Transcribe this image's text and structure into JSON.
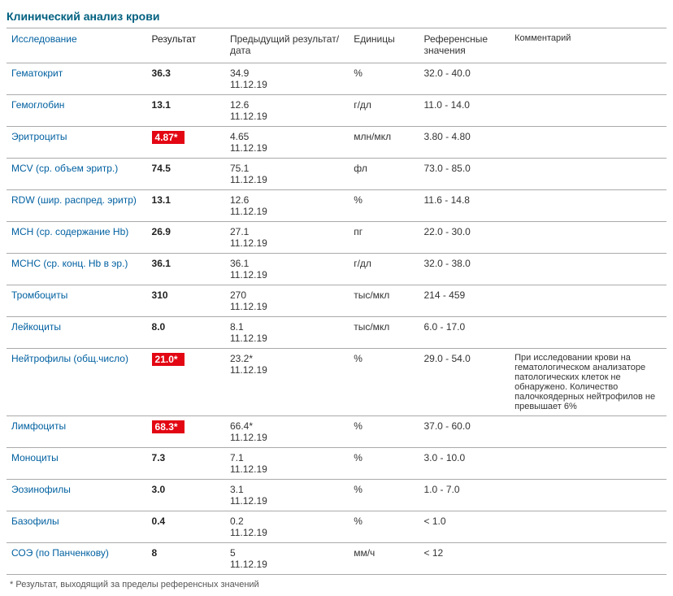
{
  "title": "Клинический анализ крови",
  "columns": {
    "name": "Исследование",
    "result": "Результат",
    "prev": "Предыдущий результат/дата",
    "unit": "Единицы",
    "ref": "Референсные значения",
    "comment": "Комментарий"
  },
  "rows": [
    {
      "name": "Гематокрит",
      "result": "36.3",
      "flag": false,
      "prev_val": "34.9",
      "prev_date": "11.12.19",
      "unit": "%",
      "ref": "32.0 - 40.0",
      "comment": ""
    },
    {
      "name": "Гемоглобин",
      "result": "13.1",
      "flag": false,
      "prev_val": "12.6",
      "prev_date": "11.12.19",
      "unit": "г/дл",
      "ref": "11.0 - 14.0",
      "comment": ""
    },
    {
      "name": "Эритроциты",
      "result": "4.87*",
      "flag": true,
      "prev_val": "4.65",
      "prev_date": "11.12.19",
      "unit": "млн/мкл",
      "ref": "3.80 - 4.80",
      "comment": ""
    },
    {
      "name": "MCV (ср. объем эритр.)",
      "result": "74.5",
      "flag": false,
      "prev_val": "75.1",
      "prev_date": "11.12.19",
      "unit": "фл",
      "ref": "73.0 - 85.0",
      "comment": ""
    },
    {
      "name": "RDW (шир. распред. эритр)",
      "result": "13.1",
      "flag": false,
      "prev_val": "12.6",
      "prev_date": "11.12.19",
      "unit": "%",
      "ref": "11.6 - 14.8",
      "comment": ""
    },
    {
      "name": "MCH (ср. содержание Hb)",
      "result": "26.9",
      "flag": false,
      "prev_val": "27.1",
      "prev_date": "11.12.19",
      "unit": "пг",
      "ref": "22.0 - 30.0",
      "comment": ""
    },
    {
      "name": "MCHC (ср. конц. Hb в эр.)",
      "result": "36.1",
      "flag": false,
      "prev_val": "36.1",
      "prev_date": "11.12.19",
      "unit": "г/дл",
      "ref": "32.0 - 38.0",
      "comment": ""
    },
    {
      "name": "Тромбоциты",
      "result": "310",
      "flag": false,
      "prev_val": "270",
      "prev_date": "11.12.19",
      "unit": "тыс/мкл",
      "ref": "214 - 459",
      "comment": ""
    },
    {
      "name": "Лейкоциты",
      "result": "8.0",
      "flag": false,
      "prev_val": "8.1",
      "prev_date": "11.12.19",
      "unit": "тыс/мкл",
      "ref": "6.0 - 17.0",
      "comment": ""
    },
    {
      "name": "Нейтрофилы (общ.число)",
      "result": "21.0*",
      "flag": true,
      "prev_val": "23.2*",
      "prev_date": "11.12.19",
      "unit": "%",
      "ref": "29.0 - 54.0",
      "comment": "При исследовании крови на гематологическом анализаторе патологических клеток не обнаружено. Количество палочкоядерных нейтрофилов не превышает 6%"
    },
    {
      "name": "Лимфоциты",
      "result": "68.3*",
      "flag": true,
      "prev_val": "66.4*",
      "prev_date": "11.12.19",
      "unit": "%",
      "ref": "37.0 - 60.0",
      "comment": ""
    },
    {
      "name": "Моноциты",
      "result": "7.3",
      "flag": false,
      "prev_val": "7.1",
      "prev_date": "11.12.19",
      "unit": "%",
      "ref": "3.0 - 10.0",
      "comment": ""
    },
    {
      "name": "Эозинофилы",
      "result": "3.0",
      "flag": false,
      "prev_val": "3.1",
      "prev_date": "11.12.19",
      "unit": "%",
      "ref": "1.0 - 7.0",
      "comment": ""
    },
    {
      "name": "Базофилы",
      "result": "0.4",
      "flag": false,
      "prev_val": "0.2",
      "prev_date": "11.12.19",
      "unit": "%",
      "ref": "< 1.0",
      "comment": ""
    },
    {
      "name": "СОЭ (по Панченкову)",
      "result": "8",
      "flag": false,
      "prev_val": "5",
      "prev_date": "11.12.19",
      "unit": "мм/ч",
      "ref": "< 12",
      "comment": ""
    }
  ],
  "footnote": "* Результат, выходящий за пределы референсных значений",
  "style": {
    "title_color": "#006080",
    "link_color": "#0060a0",
    "flag_bg": "#e30613",
    "flag_text": "#ffffff",
    "border_color": "#aaaaaa",
    "font_size_pt": 12
  }
}
